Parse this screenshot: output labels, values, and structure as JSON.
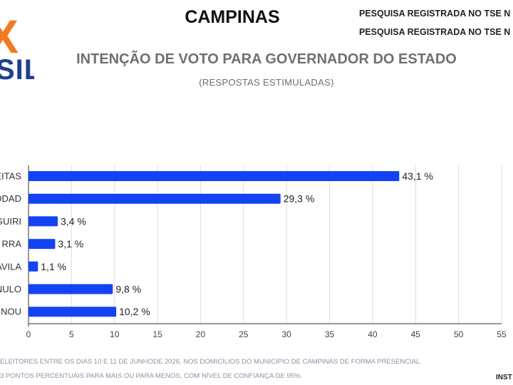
{
  "header": {
    "city": "CAMPINAS",
    "registration_1": "PESQUISA REGISTRADA NO TSE N",
    "registration_2": "PESQUISA REGISTRADA NO TSE N",
    "logo_letter": "X",
    "logo_sub": "SIL"
  },
  "chart_data": {
    "type": "bar",
    "orientation": "horizontal",
    "title": "INTENÇÃO DE VOTO PARA GOVERNADOR DO ESTADO",
    "subtitle": "(RESPOSTAS ESTIMULADAS)",
    "categories": [
      "EITAS",
      "DDAD",
      "GUIRI",
      "RRA",
      "AVILA",
      "NULO",
      "PINOU"
    ],
    "values": [
      43.1,
      29.3,
      3.4,
      3.1,
      1.1,
      9.8,
      10.2
    ],
    "value_labels": [
      "43,1 %",
      "29,3 %",
      "3,4 %",
      "3,1 %",
      "1,1 %",
      "9,8 %",
      "10,2 %"
    ],
    "xlim": [
      0,
      55
    ],
    "xticks": [
      0,
      5,
      10,
      15,
      20,
      25,
      30,
      35,
      40,
      45,
      50,
      55
    ],
    "grid": true,
    "bar_color": "#1443f5"
  },
  "footer": {
    "note_1": "ELEITORES ENTRE OS DIAS 10 E 11 DE JUNHODE 2026, NOS DOMICÍLIOS DO MUNICÍPIO DE CAMPINAS DE FORMA PRESENCIAL.",
    "note_2": "3 PONTOS PERCENTUAIS PARA MAIS OU PARA MENOS, COM NÍVEL DE CONFIANÇA DE 95%.",
    "institute": "INST"
  }
}
